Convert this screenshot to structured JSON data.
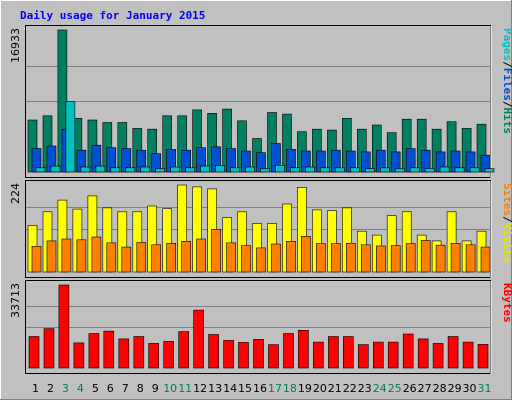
{
  "chart_data": {
    "type": "bar",
    "title": "Daily usage for January 2015",
    "days": [
      "1",
      "2",
      "3",
      "4",
      "5",
      "6",
      "7",
      "8",
      "9",
      "10",
      "11",
      "12",
      "13",
      "14",
      "15",
      "16",
      "17",
      "18",
      "19",
      "20",
      "21",
      "22",
      "23",
      "24",
      "25",
      "26",
      "27",
      "28",
      "29",
      "30",
      "31"
    ],
    "weekend_days": [
      "3",
      "4",
      "10",
      "11",
      "17",
      "18",
      "24",
      "25",
      "31"
    ],
    "panels": [
      {
        "id": "hits",
        "ymax_label": "16933",
        "ymax": 16933,
        "right_label": [
          "Pages",
          "/",
          "Files",
          "/",
          "Hits"
        ],
        "right_colors": [
          "#00c0c0",
          "#000000",
          "#0050d0",
          "#000000",
          "#008060"
        ],
        "series": [
          {
            "name": "Hits",
            "color": "#008060",
            "values": [
              6200,
              6700,
              16933,
              6400,
              6200,
              5900,
              5900,
              5200,
              5100,
              6700,
              6700,
              7400,
              7000,
              7500,
              6100,
              4000,
              7100,
              6900,
              4800,
              5100,
              5000,
              6400,
              5100,
              5600,
              4700,
              6300,
              6300,
              5100,
              6000,
              5200,
              5700
            ]
          },
          {
            "name": "Files",
            "color": "#0050d0",
            "values": [
              2800,
              3100,
              5100,
              2600,
              3200,
              2900,
              2800,
              2600,
              2200,
              2700,
              2600,
              2900,
              3000,
              2800,
              2500,
              2300,
              3400,
              2700,
              2500,
              2500,
              2600,
              2500,
              2400,
              2600,
              2400,
              2800,
              2600,
              2400,
              2500,
              2400,
              2000
            ]
          },
          {
            "name": "Pages",
            "color": "#00c0c0",
            "values": [
              500,
              700,
              8400,
              600,
              700,
              500,
              500,
              600,
              400,
              600,
              500,
              700,
              800,
              500,
              600,
              400,
              800,
              500,
              600,
              500,
              500,
              500,
              400,
              500,
              400,
              500,
              400,
              600,
              500,
              500,
              400
            ]
          }
        ]
      },
      {
        "id": "visits",
        "ymax_label": "224",
        "ymax": 224,
        "right_label": [
          "Sites",
          "/",
          "Visits"
        ],
        "right_colors": [
          "#ff8000",
          "#000000",
          "#e0e000"
        ],
        "series": [
          {
            "name": "Visits",
            "color": "#ffff00",
            "values": [
              120,
              155,
              185,
              162,
              196,
              165,
              155,
              155,
              170,
              163,
              224,
              219,
              214,
              140,
              155,
              125,
              125,
              175,
              218,
              160,
              158,
              165,
              105,
              95,
              145,
              155,
              95,
              80,
              155,
              80,
              105
            ]
          },
          {
            "name": "Sites",
            "color": "#ff8000",
            "values": [
              66,
              80,
              85,
              83,
              90,
              75,
              64,
              76,
              70,
              74,
              79,
              85,
              110,
              75,
              68,
              62,
              72,
              79,
              92,
              73,
              73,
              74,
              70,
              67,
              68,
              73,
              81,
              69,
              74,
              70,
              64
            ]
          }
        ]
      },
      {
        "id": "kbytes",
        "ymax_label": "33713",
        "ymax": 33713,
        "right_label": [
          "KBytes"
        ],
        "right_colors": [
          "#ff0000"
        ],
        "series": [
          {
            "name": "KBytes",
            "color": "#ff0000",
            "values": [
              12800,
              16000,
              33713,
              10200,
              14000,
              15000,
              11800,
              12800,
              10000,
              10800,
              14800,
              23500,
              13600,
              11200,
              10400,
              11600,
              9500,
              14000,
              15300,
              10500,
              12800,
              12800,
              9500,
              10500,
              10500,
              13800,
              11800,
              10000,
              12800,
              10500,
              9600
            ]
          }
        ]
      }
    ]
  },
  "colors": {
    "background": "#c0c0c0",
    "plot_background": "#c0c0c0",
    "title": "#0000ff",
    "weekend_label": "#00804a",
    "weekday_label": "#000000",
    "grid": "#808080"
  }
}
